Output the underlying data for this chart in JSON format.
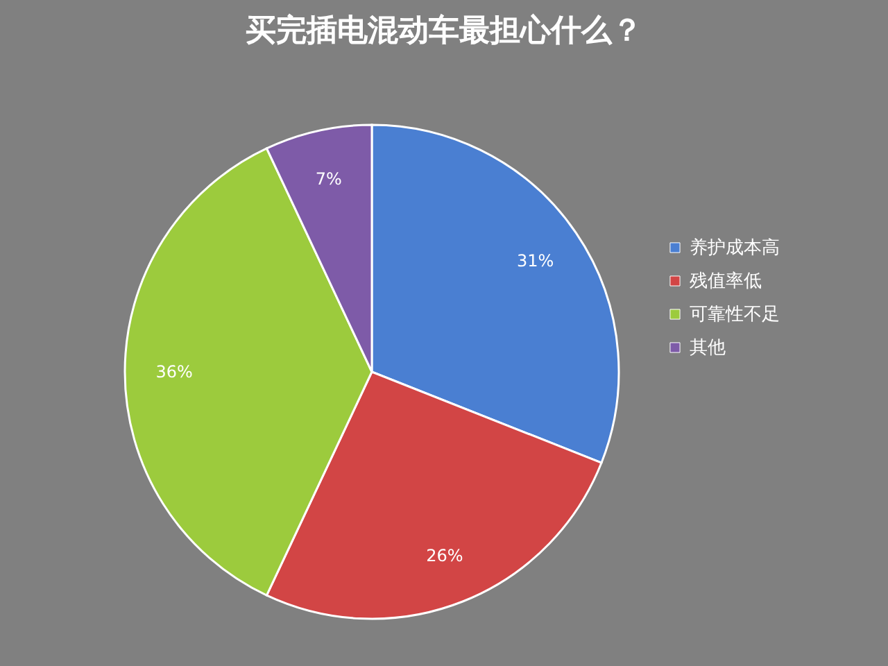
{
  "chart_data": {
    "type": "pie",
    "title": "买完插电混动车最担心什么？",
    "categories": [
      "养护成本高",
      "残值率低",
      "可靠性不足",
      "其他"
    ],
    "values": [
      31,
      26,
      36,
      7
    ],
    "colors": [
      "#4a7fd2",
      "#d24545",
      "#9ccb3d",
      "#7e5ba8"
    ],
    "value_labels": [
      "31%",
      "26%",
      "36%",
      "7%"
    ],
    "legend": "right"
  }
}
